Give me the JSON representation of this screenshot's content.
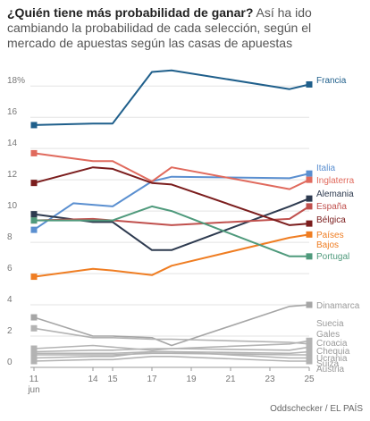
{
  "header": {
    "title": "¿Quién tiene más probabilidad de ganar?",
    "subtitle": "Así ha ido cambiando la probabilidad de cada selección, según el mercado de apuestas según las casas de apuestas"
  },
  "footer": {
    "source": "Oddschecker / EL PAÍS"
  },
  "chart_data": {
    "type": "line",
    "x_tick_labels": [
      "11",
      "14",
      "15",
      "17",
      "19",
      "21",
      "23",
      "25"
    ],
    "x_tick_values": [
      11,
      14,
      15,
      17,
      19,
      21,
      23,
      25
    ],
    "x_sublabel": "jun",
    "xlim": [
      11,
      25
    ],
    "y_tick_labels": [
      "0",
      "2",
      "4",
      "6",
      "8",
      "10",
      "12",
      "14",
      "16",
      "18%"
    ],
    "y_tick_values": [
      0,
      2,
      4,
      6,
      8,
      10,
      12,
      14,
      16,
      18
    ],
    "ylim": [
      0,
      19.5
    ],
    "grid": true,
    "series": [
      {
        "name": "Francia",
        "color": "#1f5f8b",
        "label_lines": [
          "Francia"
        ],
        "x": [
          11,
          14,
          15,
          17,
          18,
          24,
          25
        ],
        "y": [
          15.5,
          15.6,
          15.6,
          18.9,
          19.0,
          17.8,
          18.1
        ]
      },
      {
        "name": "Italia",
        "color": "#5a8fd0",
        "label_lines": [
          "Italia"
        ],
        "x": [
          11,
          13,
          14,
          15,
          17,
          18,
          24,
          25
        ],
        "y": [
          8.8,
          10.5,
          10.4,
          10.3,
          11.9,
          12.2,
          12.1,
          12.4
        ]
      },
      {
        "name": "Inglaterra",
        "color": "#e06a5d",
        "label_lines": [
          "Inglaterra"
        ],
        "x": [
          11,
          14,
          15,
          17,
          18,
          24,
          25
        ],
        "y": [
          13.7,
          13.2,
          13.2,
          11.9,
          12.8,
          11.4,
          12.0
        ]
      },
      {
        "name": "Alemania",
        "color": "#2d3a4f",
        "label_lines": [
          "Alemania"
        ],
        "x": [
          11,
          14,
          15,
          17,
          18,
          24,
          25
        ],
        "y": [
          9.8,
          9.3,
          9.3,
          7.5,
          7.5,
          10.3,
          10.8
        ]
      },
      {
        "name": "España",
        "color": "#c0504d",
        "label_lines": [
          "España"
        ],
        "x": [
          11,
          14,
          15,
          17,
          18,
          24,
          25
        ],
        "y": [
          9.4,
          9.5,
          9.4,
          9.2,
          9.1,
          9.5,
          10.3
        ]
      },
      {
        "name": "Bélgica",
        "color": "#7b1d1d",
        "label_lines": [
          "Bélgica"
        ],
        "x": [
          11,
          14,
          15,
          17,
          18,
          24,
          25
        ],
        "y": [
          11.8,
          12.8,
          12.7,
          11.8,
          11.7,
          9.1,
          9.2
        ]
      },
      {
        "name": "Países Bajos",
        "color": "#ef7d22",
        "label_lines": [
          "Países",
          "Bajos"
        ],
        "x": [
          11,
          14,
          15,
          17,
          18,
          24,
          25
        ],
        "y": [
          5.8,
          6.3,
          6.2,
          5.9,
          6.5,
          8.3,
          8.5
        ]
      },
      {
        "name": "Portugal",
        "color": "#4f9a7c",
        "label_lines": [
          "Portugal"
        ],
        "x": [
          11,
          14,
          15,
          17,
          18,
          24,
          25
        ],
        "y": [
          9.4,
          9.4,
          9.4,
          10.3,
          10.0,
          7.1,
          7.1
        ]
      },
      {
        "name": "Dinamarca",
        "color": "#a6a6a6",
        "label_lines": [
          "Dinamarca"
        ],
        "x": [
          11,
          14,
          15,
          17,
          18,
          24,
          25
        ],
        "y": [
          3.2,
          2.0,
          2.0,
          1.9,
          1.4,
          3.9,
          4.0
        ]
      },
      {
        "name": "Suecia",
        "color": "#b3b3b3",
        "label_lines": [
          "Suecia"
        ],
        "x": [
          11,
          14,
          15,
          17,
          18,
          24,
          25
        ],
        "y": [
          2.5,
          1.9,
          1.9,
          1.8,
          1.8,
          1.6,
          1.5
        ]
      },
      {
        "name": "Gales",
        "color": "#b3b3b3",
        "label_lines": [
          "Gales"
        ],
        "x": [
          11,
          14,
          15,
          17,
          18,
          24,
          25
        ],
        "y": [
          1.2,
          1.4,
          1.3,
          1.1,
          1.2,
          1.5,
          1.7
        ]
      },
      {
        "name": "Croacia",
        "color": "#b3b3b3",
        "label_lines": [
          "Croacia"
        ],
        "x": [
          11,
          14,
          15,
          17,
          18,
          24,
          25
        ],
        "y": [
          1.0,
          1.1,
          1.1,
          1.2,
          1.2,
          1.1,
          1.3
        ]
      },
      {
        "name": "Chequia",
        "color": "#b3b3b3",
        "label_lines": [
          "Chequia"
        ],
        "x": [
          11,
          14,
          15,
          17,
          18,
          24,
          25
        ],
        "y": [
          0.9,
          0.9,
          0.9,
          1.0,
          1.0,
          0.9,
          1.0
        ]
      },
      {
        "name": "Ucrania",
        "color": "#b3b3b3",
        "label_lines": [
          "Ucrania"
        ],
        "x": [
          11,
          14,
          15,
          17,
          18,
          24,
          25
        ],
        "y": [
          0.8,
          0.8,
          0.8,
          0.9,
          0.9,
          0.8,
          0.8
        ]
      },
      {
        "name": "Suiza",
        "color": "#b3b3b3",
        "label_lines": [
          "Suiza"
        ],
        "x": [
          11,
          14,
          15,
          17,
          18,
          24,
          25
        ],
        "y": [
          0.6,
          0.7,
          0.7,
          1.0,
          1.0,
          0.6,
          0.6
        ]
      },
      {
        "name": "Austria",
        "color": "#b3b3b3",
        "label_lines": [
          "Austria"
        ],
        "x": [
          11,
          14,
          15,
          17,
          18,
          24,
          25
        ],
        "y": [
          0.4,
          0.5,
          0.5,
          0.7,
          0.7,
          0.4,
          0.4
        ]
      }
    ]
  }
}
